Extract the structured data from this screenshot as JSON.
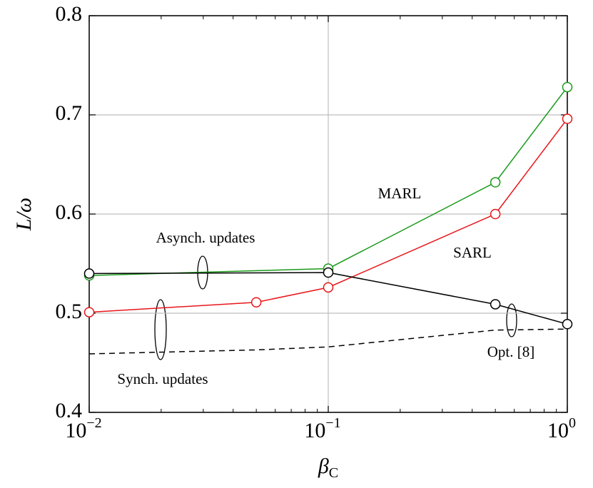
{
  "chart_data": {
    "type": "line",
    "xlabel": "β",
    "xlabel_subscript": "C",
    "ylabel": "L/ω",
    "xscale": "log",
    "grid": true,
    "xlim": [
      0.01,
      1
    ],
    "ylim": [
      0.4,
      0.8
    ],
    "xticks": [
      {
        "value": 0.01,
        "label": "10",
        "exponent": "−2"
      },
      {
        "value": 0.1,
        "label": "10",
        "exponent": "−1"
      },
      {
        "value": 1,
        "label": "10",
        "exponent": "0"
      }
    ],
    "xminor_ticks": [
      0.02,
      0.03,
      0.04,
      0.05,
      0.06,
      0.07,
      0.08,
      0.09,
      0.2,
      0.3,
      0.4,
      0.5,
      0.6,
      0.7,
      0.8,
      0.9
    ],
    "yticks": [
      0.4,
      0.5,
      0.6,
      0.7,
      0.8
    ],
    "series": [
      {
        "name": "MARL",
        "color": "#1a9a1a",
        "marker": "circle",
        "x": [
          0.01,
          0.1,
          0.5,
          1
        ],
        "values": [
          0.538,
          0.545,
          0.632,
          0.728
        ]
      },
      {
        "name": "SARL",
        "color": "#e8161a",
        "marker": "circle",
        "x": [
          0.01,
          0.05,
          0.1,
          0.5,
          1
        ],
        "values": [
          0.501,
          0.511,
          0.526,
          0.6,
          0.696
        ]
      },
      {
        "color": "#000000",
        "marker": "circle",
        "x": [
          0.01,
          0.1,
          0.5,
          1
        ],
        "values": [
          0.54,
          0.541,
          0.509,
          0.489
        ]
      },
      {
        "color": "#000000",
        "dash": true,
        "x": [
          0.01,
          0.05,
          0.1,
          0.5,
          1
        ],
        "values": [
          0.459,
          0.463,
          0.466,
          0.483,
          0.484
        ]
      }
    ],
    "annotations": [
      "Asynch. updates",
      "Synch. updates",
      "Opt. [8]"
    ]
  }
}
